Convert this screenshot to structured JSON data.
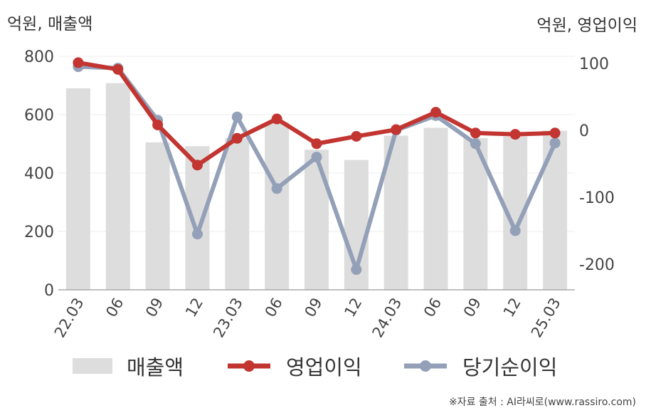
{
  "left_unit": "억원, 매출액",
  "right_unit": "억원, 영업이익",
  "credit": "※자료 출처 : AI라씨로(www.rassiro.com)",
  "colors": {
    "revenue": "#dddddd",
    "operating": "#c23531",
    "net": "#93a0b8"
  },
  "chart_data": {
    "type": "bar",
    "categories": [
      "22.03",
      "06",
      "09",
      "12",
      "23.03",
      "06",
      "09",
      "12",
      "24.03",
      "06",
      "09",
      "12",
      "25.03"
    ],
    "y_left": {
      "ticks": [
        0,
        200,
        400,
        600,
        800
      ],
      "range": [
        0,
        800
      ]
    },
    "y_right": {
      "ticks": [
        100,
        0,
        -100,
        -200
      ],
      "range": [
        -240,
        110
      ]
    },
    "grid": true,
    "legend_position": "bottom",
    "series": [
      {
        "name": "매출액",
        "type": "bar",
        "axis": "left",
        "values": [
          690,
          708,
          505,
          492,
          520,
          575,
          480,
          445,
          528,
          555,
          520,
          525,
          545
        ]
      },
      {
        "name": "영업이익",
        "type": "line",
        "axis": "right",
        "values": [
          101,
          91,
          8,
          -52,
          -12,
          17,
          -20,
          -9,
          1,
          27,
          -4,
          -6,
          -4
        ]
      },
      {
        "name": "당기순이익",
        "type": "line",
        "axis": "right",
        "values": [
          95,
          93,
          15,
          -155,
          20,
          -87,
          -40,
          -208,
          0,
          22,
          -20,
          -150,
          -19
        ]
      }
    ]
  }
}
